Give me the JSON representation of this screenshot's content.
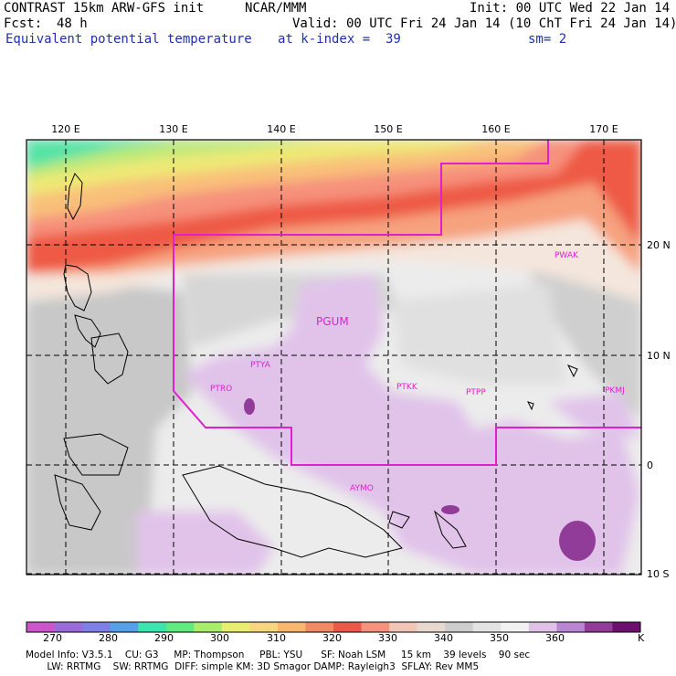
{
  "header": {
    "model": "CONTRAST 15km ARW-GFS init",
    "org": "NCAR/MMM",
    "init": "Init: 00 UTC Wed 22 Jan 14",
    "fcst_label": "Fcst:",
    "fcst_value": "48 h",
    "valid": "Valid: 00 UTC Fri 24 Jan 14 (10 ChT Fri 24 Jan 14)",
    "field": "Equivalent potential temperature",
    "level": "at k-index =  39",
    "smoothing": "sm= 2"
  },
  "map": {
    "lon_labels": [
      "120 E",
      "130 E",
      "140 E",
      "150 E",
      "160 E",
      "170 E"
    ],
    "lat_labels": [
      "20 N",
      "10 N",
      "0",
      "10 S"
    ],
    "stations": [
      {
        "id": "PWAK"
      },
      {
        "id": "PGUM"
      },
      {
        "id": "PTYA"
      },
      {
        "id": "PTRO"
      },
      {
        "id": "PTKK"
      },
      {
        "id": "PTPP"
      },
      {
        "id": "PKMJ"
      },
      {
        "id": "AYMO"
      }
    ],
    "colors": {
      "grid": "#000000",
      "boundary": "#e01fd0",
      "coast": "#000000"
    }
  },
  "colorbar": {
    "labels": [
      "270",
      "280",
      "290",
      "300",
      "310",
      "320",
      "330",
      "340",
      "350",
      "360"
    ],
    "unit": "K",
    "colors": [
      "#cc55cc",
      "#9b6bd9",
      "#7f7fe8",
      "#55a0e8",
      "#3fe3b0",
      "#5fea7f",
      "#a8ee6a",
      "#e8ee6f",
      "#f6d77f",
      "#f9b86e",
      "#f08a66",
      "#ea5a4a",
      "#f6917b",
      "#f2c6b4",
      "#e5d9d0",
      "#cdcdcd",
      "#e3e3e3",
      "#f2f2f2",
      "#e0c1e8",
      "#b886d2",
      "#923c99",
      "#6e0e6e"
    ]
  },
  "footer": {
    "line1": "Model Info: V3.5.1    CU: G3     MP: Thompson     PBL: YSU      SF: Noah LSM     15 km    39 levels    90 sec",
    "line2": "       LW: RRTMG    SW: RRTMG  DIFF: simple KM: 3D Smagor DAMP: Rayleigh3  SFLAY: Rev MM5"
  }
}
